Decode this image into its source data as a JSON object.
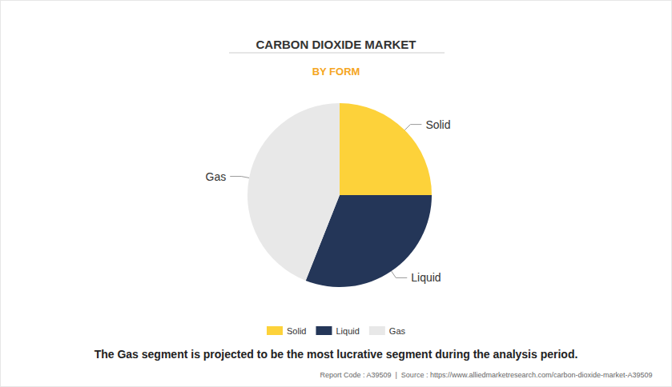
{
  "chart_data": {
    "type": "pie",
    "title": "CARBON DIOXIDE MARKET",
    "subtitle": "BY FORM",
    "categories": [
      "Solid",
      "Liquid",
      "Gas"
    ],
    "values": [
      25,
      31,
      44
    ],
    "colors": [
      "#fdd23a",
      "#243658",
      "#e8e8e8"
    ],
    "legend": "bottom",
    "caption": "The Gas segment is projected to be the most lucrative segment during the analysis period.",
    "source": "Report Code : A39509  |  Source : https://www.alliedmarketresearch.com/carbon-dioxide-market-A39509"
  }
}
